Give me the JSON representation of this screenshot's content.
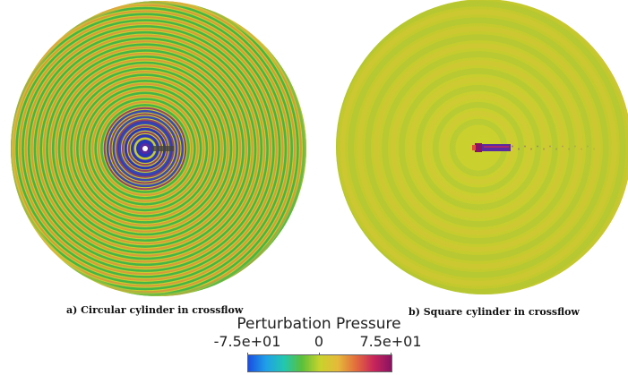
{
  "panels": [
    {
      "id": "a",
      "caption": "a) Circular cylinder in crossflow",
      "ring_count": 26,
      "wave_strength": "strong"
    },
    {
      "id": "b",
      "caption": "b) Square cylinder in crossflow",
      "ring_count": 9,
      "wave_strength": "weak"
    }
  ],
  "colorbar": {
    "title": "Perturbation Pressure",
    "min_label": "-7.5e+01",
    "mid_label": "0",
    "max_label": "7.5e+01",
    "colors": [
      "#1a4fe0",
      "#1fa0e8",
      "#22c7b0",
      "#5bbf3a",
      "#c8d32c",
      "#e6b93a",
      "#e36d3d",
      "#c8265a",
      "#8a1262"
    ]
  },
  "palette": {
    "background_yellow": "#c8ce2c",
    "wave_green": "#36b34a",
    "wave_orange": "#d9903f",
    "cylinder_blue": "#2833b8",
    "cylinder_purple": "#8a1262"
  }
}
